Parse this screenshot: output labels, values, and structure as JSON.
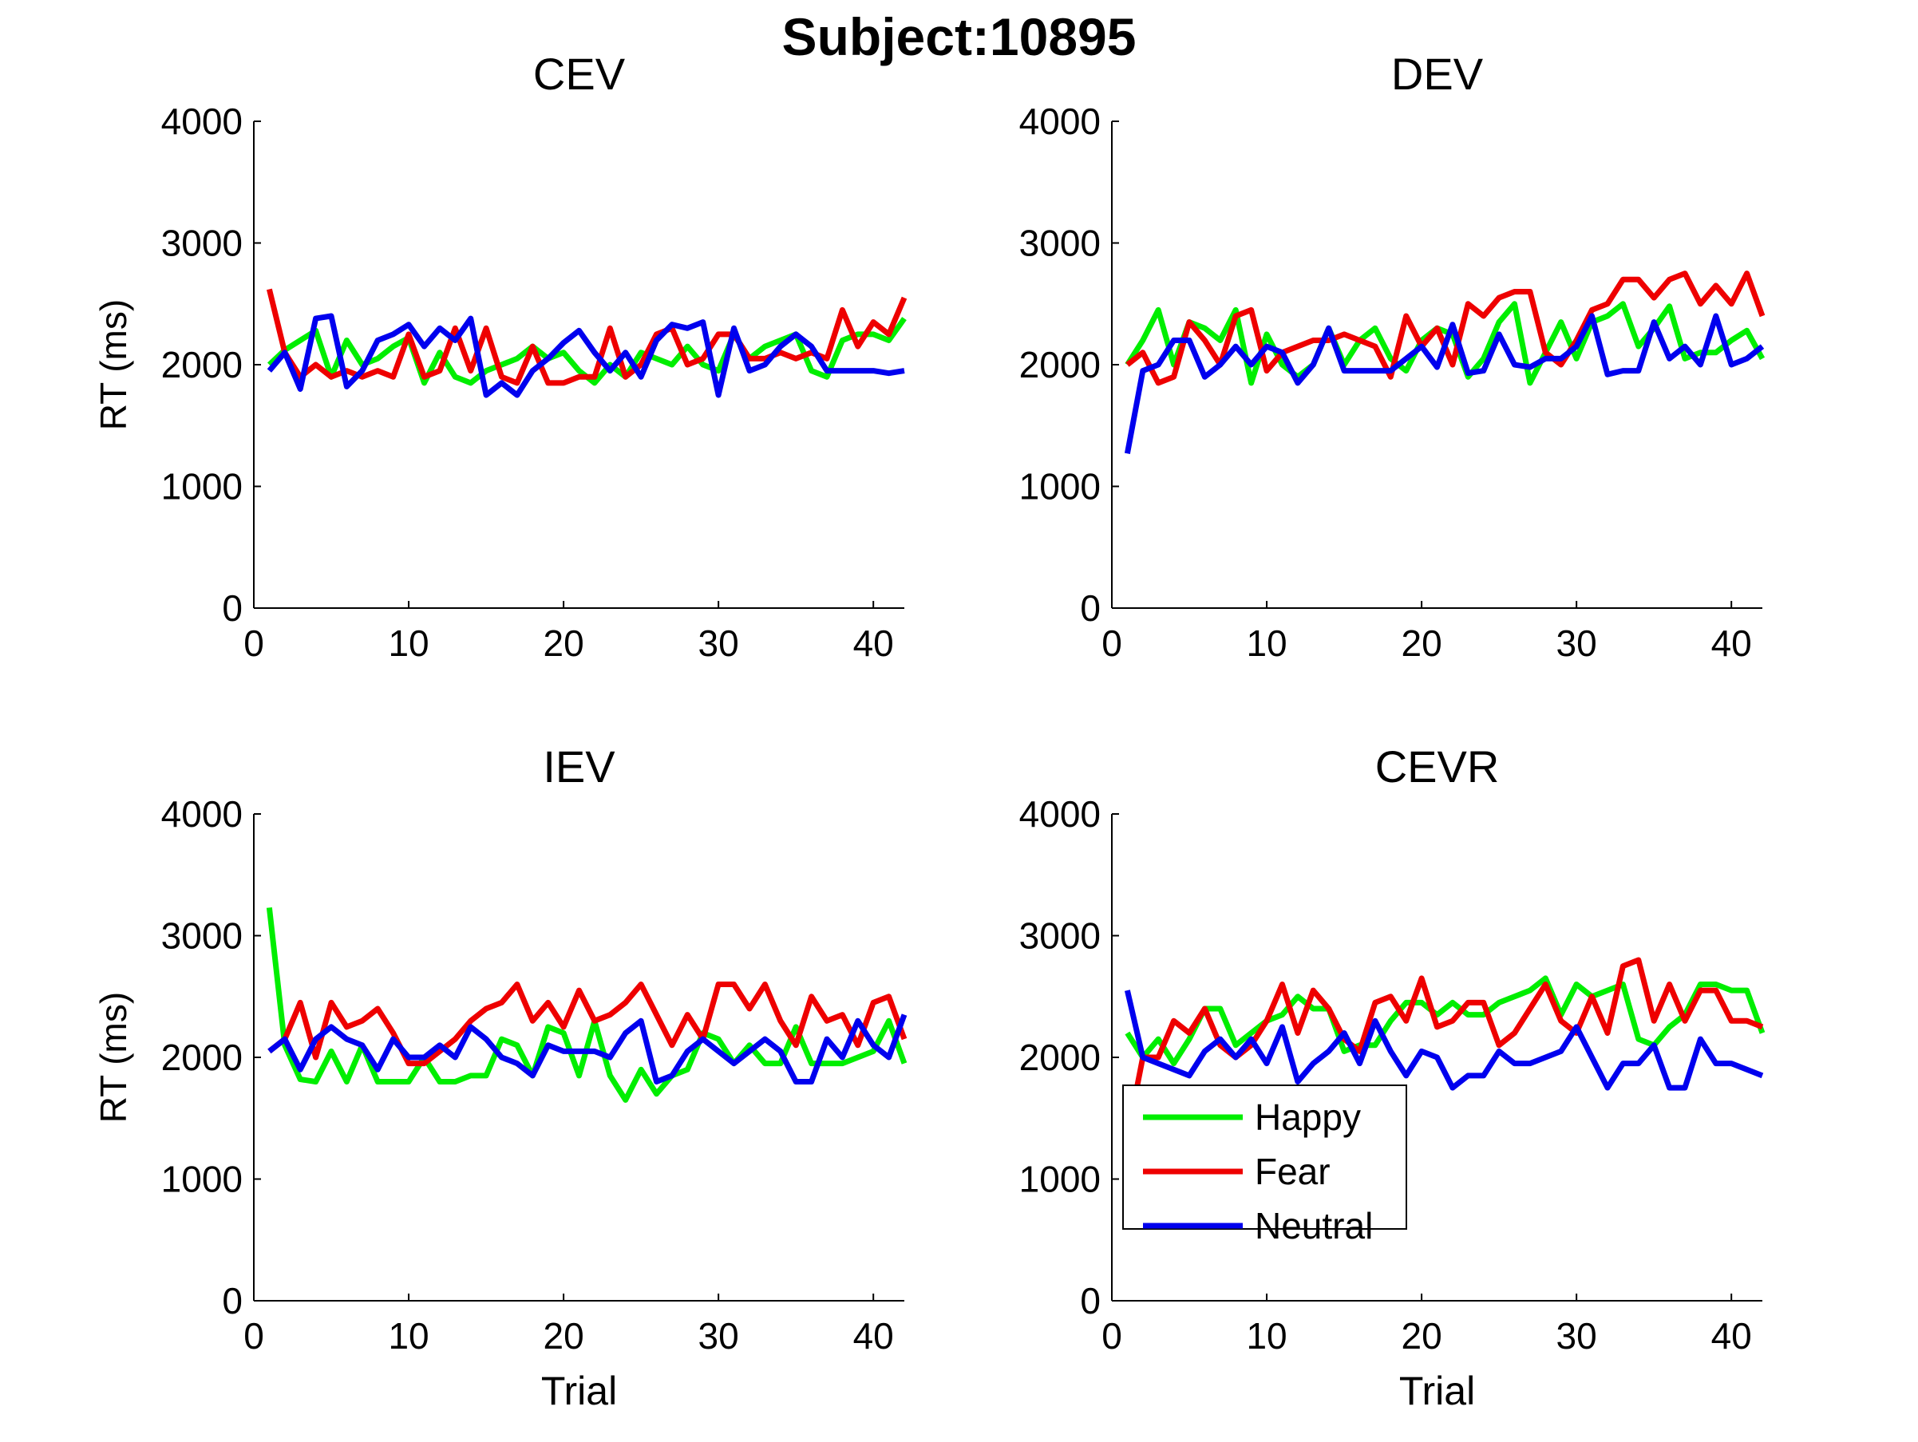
{
  "figure_title": "Subject:10895",
  "colors": {
    "Happy": "#00ee00",
    "Fear": "#ee0000",
    "Neutral": "#0000ee",
    "axis": "#000000"
  },
  "legend": {
    "placement": "inside-upper-left of CEVR panel",
    "entries": [
      "Happy",
      "Fear",
      "Neutral"
    ]
  },
  "chart_data": [
    {
      "type": "line",
      "title": "CEV",
      "xlabel": "",
      "ylabel": "RT (ms)",
      "xlim": [
        0,
        42
      ],
      "ylim": [
        0,
        4000
      ],
      "xticks": [
        0,
        10,
        20,
        30,
        40
      ],
      "yticks": [
        0,
        1000,
        2000,
        3000,
        4000
      ],
      "grid": false,
      "x": [
        1,
        2,
        3,
        4,
        5,
        6,
        7,
        8,
        9,
        10,
        11,
        12,
        13,
        14,
        15,
        16,
        17,
        18,
        19,
        20,
        21,
        22,
        23,
        24,
        25,
        26,
        27,
        28,
        29,
        30,
        31,
        32,
        33,
        34,
        35,
        36,
        37,
        38,
        39,
        40,
        41,
        42
      ],
      "series": [
        {
          "name": "Happy",
          "values": [
            2000,
            2120,
            2200,
            2280,
            1900,
            2200,
            2000,
            2050,
            2150,
            2220,
            1850,
            2100,
            1900,
            1850,
            1950,
            2000,
            2050,
            2150,
            2050,
            2100,
            1950,
            1850,
            2000,
            1900,
            2100,
            2050,
            2000,
            2150,
            2000,
            1950,
            2250,
            2050,
            2150,
            2200,
            2250,
            1950,
            1900,
            2200,
            2250,
            2250,
            2200,
            2380
          ]
        },
        {
          "name": "Fear",
          "values": [
            2620,
            2100,
            1900,
            2000,
            1900,
            1950,
            1900,
            1950,
            1900,
            2250,
            1900,
            1950,
            2300,
            1950,
            2300,
            1900,
            1850,
            2150,
            1850,
            1850,
            1900,
            1900,
            2300,
            1900,
            2000,
            2250,
            2300,
            2000,
            2050,
            2250,
            2250,
            2050,
            2050,
            2100,
            2050,
            2100,
            2050,
            2450,
            2150,
            2350,
            2250,
            2550
          ]
        },
        {
          "name": "Neutral",
          "values": [
            1950,
            2100,
            1800,
            2380,
            2400,
            1820,
            1950,
            2200,
            2250,
            2330,
            2150,
            2300,
            2200,
            2380,
            1750,
            1850,
            1750,
            1950,
            2050,
            2180,
            2280,
            2100,
            1950,
            2100,
            1900,
            2200,
            2330,
            2300,
            2350,
            1750,
            2300,
            1950,
            2000,
            2150,
            2250,
            2150,
            1950,
            1950,
            1950,
            1950,
            1930,
            1950
          ]
        }
      ]
    },
    {
      "type": "line",
      "title": "DEV",
      "xlabel": "",
      "ylabel": "",
      "xlim": [
        0,
        42
      ],
      "ylim": [
        0,
        4000
      ],
      "xticks": [
        0,
        10,
        20,
        30,
        40
      ],
      "yticks": [
        0,
        1000,
        2000,
        3000,
        4000
      ],
      "grid": false,
      "x": [
        1,
        2,
        3,
        4,
        5,
        6,
        7,
        8,
        9,
        10,
        11,
        12,
        13,
        14,
        15,
        16,
        17,
        18,
        19,
        20,
        21,
        22,
        23,
        24,
        25,
        26,
        27,
        28,
        29,
        30,
        31,
        32,
        33,
        34,
        35,
        36,
        37,
        38,
        39,
        40,
        41,
        42
      ],
      "series": [
        {
          "name": "Happy",
          "values": [
            2000,
            2200,
            2450,
            2000,
            2350,
            2300,
            2200,
            2450,
            1850,
            2250,
            2000,
            1900,
            2000,
            2300,
            2000,
            2200,
            2300,
            2050,
            1950,
            2200,
            2300,
            2250,
            1900,
            2050,
            2350,
            2500,
            1850,
            2100,
            2350,
            2050,
            2350,
            2400,
            2500,
            2150,
            2300,
            2480,
            2050,
            2100,
            2100,
            2200,
            2280,
            2050
          ]
        },
        {
          "name": "Fear",
          "values": [
            2000,
            2100,
            1850,
            1900,
            2350,
            2200,
            2000,
            2400,
            2450,
            1950,
            2100,
            2150,
            2200,
            2200,
            2250,
            2200,
            2150,
            1900,
            2400,
            2150,
            2300,
            2000,
            2500,
            2400,
            2550,
            2600,
            2600,
            2100,
            2000,
            2200,
            2450,
            2500,
            2700,
            2700,
            2550,
            2700,
            2750,
            2500,
            2650,
            2500,
            2750,
            2400
          ]
        },
        {
          "name": "Neutral",
          "values": [
            1270,
            1950,
            2000,
            2200,
            2200,
            1900,
            2000,
            2150,
            2000,
            2150,
            2100,
            1850,
            2000,
            2300,
            1950,
            1950,
            1950,
            1950,
            2050,
            2150,
            1980,
            2330,
            1930,
            1950,
            2250,
            2000,
            1980,
            2050,
            2050,
            2150,
            2400,
            1920,
            1950,
            1950,
            2350,
            2050,
            2150,
            2000,
            2400,
            2000,
            2050,
            2150
          ]
        }
      ]
    },
    {
      "type": "line",
      "title": "IEV",
      "xlabel": "Trial",
      "ylabel": "RT (ms)",
      "xlim": [
        0,
        42
      ],
      "ylim": [
        0,
        4000
      ],
      "xticks": [
        0,
        10,
        20,
        30,
        40
      ],
      "yticks": [
        0,
        1000,
        2000,
        3000,
        4000
      ],
      "grid": false,
      "x": [
        1,
        2,
        3,
        4,
        5,
        6,
        7,
        8,
        9,
        10,
        11,
        12,
        13,
        14,
        15,
        16,
        17,
        18,
        19,
        20,
        21,
        22,
        23,
        24,
        25,
        26,
        27,
        28,
        29,
        30,
        31,
        32,
        33,
        34,
        35,
        36,
        37,
        38,
        39,
        40,
        41,
        42
      ],
      "series": [
        {
          "name": "Happy",
          "values": [
            3230,
            2100,
            1820,
            1800,
            2050,
            1800,
            2100,
            1800,
            1800,
            1800,
            2000,
            1800,
            1800,
            1850,
            1850,
            2150,
            2100,
            1850,
            2250,
            2200,
            1850,
            2300,
            1850,
            1650,
            1900,
            1700,
            1850,
            1900,
            2200,
            2150,
            1950,
            2100,
            1950,
            1950,
            2250,
            1950,
            1950,
            1950,
            2000,
            2050,
            2300,
            1950
          ]
        },
        {
          "name": "Fear",
          "values": [
            2050,
            2150,
            2450,
            2000,
            2450,
            2250,
            2300,
            2400,
            2200,
            1950,
            1950,
            2050,
            2150,
            2300,
            2400,
            2450,
            2600,
            2300,
            2450,
            2250,
            2550,
            2300,
            2350,
            2450,
            2600,
            2350,
            2100,
            2350,
            2150,
            2600,
            2600,
            2400,
            2600,
            2300,
            2100,
            2500,
            2300,
            2350,
            2100,
            2450,
            2500,
            2150
          ]
        },
        {
          "name": "Neutral",
          "values": [
            2050,
            2150,
            1900,
            2150,
            2250,
            2150,
            2100,
            1900,
            2150,
            2000,
            2000,
            2100,
            2000,
            2250,
            2150,
            2000,
            1950,
            1850,
            2100,
            2050,
            2050,
            2050,
            2000,
            2200,
            2300,
            1800,
            1850,
            2050,
            2150,
            2050,
            1950,
            2050,
            2150,
            2050,
            1800,
            1800,
            2150,
            2000,
            2300,
            2100,
            2000,
            2350
          ]
        }
      ]
    },
    {
      "type": "line",
      "title": "CEVR",
      "xlabel": "Trial",
      "ylabel": "",
      "xlim": [
        0,
        42
      ],
      "ylim": [
        0,
        4000
      ],
      "xticks": [
        0,
        10,
        20,
        30,
        40
      ],
      "yticks": [
        0,
        1000,
        2000,
        3000,
        4000
      ],
      "grid": false,
      "x": [
        1,
        2,
        3,
        4,
        5,
        6,
        7,
        8,
        9,
        10,
        11,
        12,
        13,
        14,
        15,
        16,
        17,
        18,
        19,
        20,
        21,
        22,
        23,
        24,
        25,
        26,
        27,
        28,
        29,
        30,
        31,
        32,
        33,
        34,
        35,
        36,
        37,
        38,
        39,
        40,
        41,
        42
      ],
      "series": [
        {
          "name": "Happy",
          "values": [
            2200,
            2000,
            2150,
            1950,
            2150,
            2400,
            2400,
            2100,
            2200,
            2300,
            2350,
            2500,
            2400,
            2400,
            2050,
            2100,
            2100,
            2300,
            2450,
            2450,
            2350,
            2450,
            2350,
            2350,
            2450,
            2500,
            2550,
            2650,
            2350,
            2600,
            2500,
            2550,
            2600,
            2150,
            2100,
            2250,
            2350,
            2600,
            2600,
            2550,
            2550,
            2200
          ]
        },
        {
          "name": "Fear",
          "values": [
            1350,
            2000,
            2000,
            2300,
            2200,
            2400,
            2100,
            2000,
            2100,
            2300,
            2600,
            2200,
            2550,
            2400,
            2150,
            2050,
            2450,
            2500,
            2300,
            2650,
            2250,
            2300,
            2450,
            2450,
            2100,
            2200,
            2400,
            2600,
            2300,
            2200,
            2500,
            2200,
            2750,
            2800,
            2300,
            2600,
            2300,
            2550,
            2550,
            2300,
            2300,
            2250
          ]
        },
        {
          "name": "Neutral",
          "values": [
            2550,
            2000,
            1950,
            1900,
            1850,
            2050,
            2150,
            2000,
            2150,
            1950,
            2250,
            1800,
            1950,
            2050,
            2200,
            1950,
            2300,
            2050,
            1850,
            2050,
            2000,
            1750,
            1850,
            1850,
            2050,
            1950,
            1950,
            2000,
            2050,
            2250,
            2000,
            1750,
            1950,
            1950,
            2100,
            1750,
            1750,
            2150,
            1950,
            1950,
            1900,
            1850
          ]
        }
      ]
    }
  ]
}
